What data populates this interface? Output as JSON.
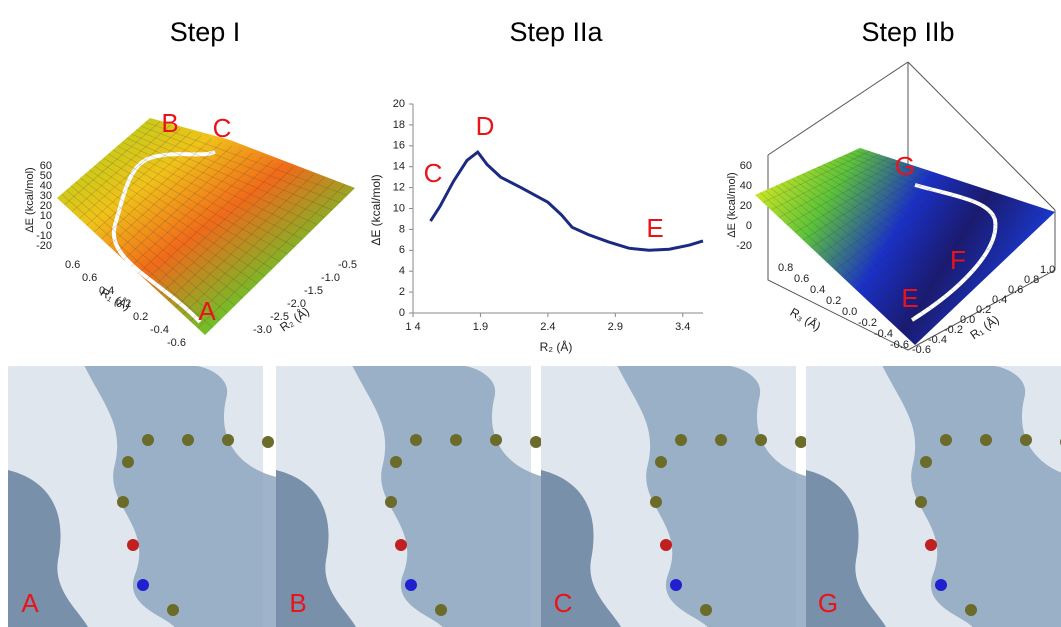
{
  "titles": [
    "Step I",
    "Step IIa",
    "Step IIb"
  ],
  "chart_data": {
    "type": "line",
    "xlabel": "R₂ (Å)",
    "ylabel": "ΔE (kcal/mol)",
    "x": [
      1.53,
      1.6,
      1.7,
      1.8,
      1.88,
      1.95,
      2.05,
      2.2,
      2.4,
      2.5,
      2.58,
      2.7,
      2.85,
      3.0,
      3.15,
      3.3,
      3.45,
      3.55
    ],
    "series": [
      {
        "name": "Step IIa",
        "color": "#1a2a80",
        "values": [
          8.8,
          10.2,
          12.6,
          14.6,
          15.4,
          14.2,
          13.0,
          12.0,
          10.6,
          9.4,
          8.2,
          7.5,
          6.8,
          6.2,
          6.0,
          6.1,
          6.5,
          6.9
        ]
      }
    ],
    "xlim": [
      1.4,
      3.55
    ],
    "ylim": [
      0,
      20
    ],
    "xticks": [
      {
        "value": 1.4,
        "label": "1 4"
      },
      1.9,
      2.4,
      2.9,
      3.4
    ],
    "yticks": [
      0,
      2,
      4,
      6,
      8,
      10,
      12,
      14,
      16,
      18,
      20
    ],
    "annotations": [
      "C",
      "D",
      "E"
    ]
  },
  "surface_step_i": {
    "z_label": "ΔE (kcal/mol)",
    "z_ticks": [
      "60",
      "50",
      "40",
      "30",
      "20",
      "10",
      "0",
      "-10",
      "-20"
    ],
    "left_label": "R₁ (Å)",
    "left_ticks": [
      "0.6",
      "0.6",
      "0.4",
      "0.2",
      "0.2",
      "-0.4",
      "-0.6"
    ],
    "right_label": "R₂ (Å)",
    "right_ticks": [
      "-0.5",
      "-1.0",
      "-1.5",
      "-2.0",
      "-2.5",
      "-3.0"
    ],
    "labels": [
      "B",
      "C",
      "A"
    ]
  },
  "surface_step_iib": {
    "z_label": "ΔE (kcal/mol)",
    "z_ticks": [
      "60",
      "40",
      "20",
      "0",
      "-20"
    ],
    "left_label": "R₃ (Å)",
    "left_ticks": [
      "0.8",
      "0.6",
      "0.4",
      "0.2",
      "0.0",
      "-0.2",
      "-0.4",
      "-0.6"
    ],
    "right_label": "R₁ (Å)",
    "right_ticks": [
      "1.0",
      "0.8",
      "0.6",
      "0.4",
      "0.2",
      "0.0",
      "-0.2",
      "-0.4",
      "-0.6"
    ],
    "labels": [
      "G",
      "F",
      "E"
    ]
  },
  "snapshots": [
    "A",
    "B",
    "C",
    "G"
  ]
}
